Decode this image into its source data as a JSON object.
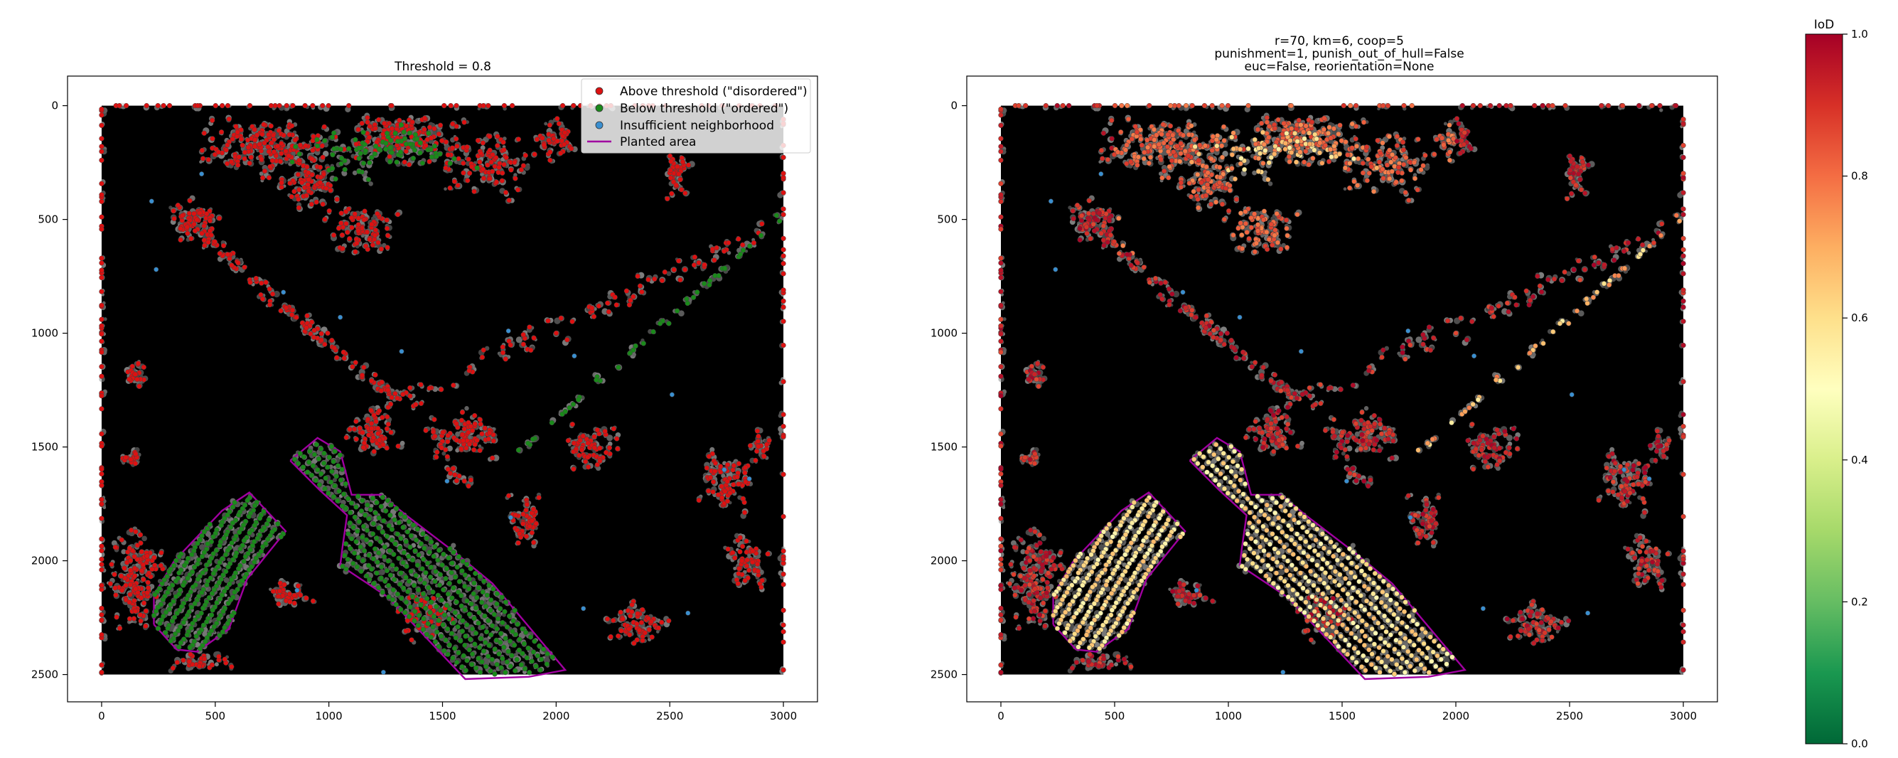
{
  "chart_data": [
    {
      "type": "scatter",
      "title": "Threshold = 0.8",
      "xlim": [
        -150,
        3150
      ],
      "ylim": [
        2620,
        -130
      ],
      "xticks": [
        0,
        500,
        1000,
        1500,
        2000,
        2500,
        3000
      ],
      "yticks": [
        0,
        500,
        1000,
        1500,
        2000,
        2500
      ],
      "grid": false,
      "legend_position": "top-right",
      "legend": [
        {
          "label": "Above threshold (\"disordered\")",
          "color": "#dd1111",
          "marker": "circle"
        },
        {
          "label": "Below threshold (\"ordered\")",
          "color": "#1a8a1a",
          "marker": "circle"
        },
        {
          "label": "Insufficient neighborhood",
          "color": "#3a8fd0",
          "marker": "circle"
        },
        {
          "label": "Planted area",
          "color": "#a000a0",
          "marker": "line"
        }
      ],
      "background_extent": {
        "x": [
          0,
          3000
        ],
        "y": [
          0,
          2500
        ]
      },
      "planted_area": [
        [
          [
            230,
            2280
          ],
          [
            330,
            2390
          ],
          [
            420,
            2400
          ],
          [
            560,
            2300
          ],
          [
            640,
            2080
          ],
          [
            810,
            1870
          ],
          [
            650,
            1700
          ],
          [
            530,
            1780
          ],
          [
            320,
            2000
          ],
          [
            230,
            2150
          ],
          [
            230,
            2280
          ]
        ],
        [
          [
            830,
            1560
          ],
          [
            950,
            1460
          ],
          [
            1050,
            1520
          ],
          [
            1100,
            1710
          ],
          [
            1230,
            1710
          ],
          [
            1340,
            1800
          ],
          [
            1550,
            1960
          ],
          [
            1720,
            2100
          ],
          [
            2040,
            2480
          ],
          [
            1880,
            2510
          ],
          [
            1600,
            2520
          ],
          [
            1260,
            2160
          ],
          [
            1050,
            2020
          ],
          [
            1060,
            1940
          ],
          [
            1080,
            1800
          ],
          [
            960,
            1690
          ],
          [
            830,
            1560
          ]
        ]
      ],
      "point_colors": {
        "disordered": "#dd1111",
        "ordered": "#1a8a1a",
        "insufficient": "#3a8fd0"
      }
    },
    {
      "type": "scatter",
      "title_lines": [
        "r=70, km=6, coop=5",
        "punishment=1, punish_out_of_hull=False",
        "euc=False, reorientation=None"
      ],
      "xlim": [
        -150,
        3150
      ],
      "ylim": [
        2620,
        -130
      ],
      "xticks": [
        0,
        500,
        1000,
        1500,
        2000,
        2500,
        3000
      ],
      "yticks": [
        0,
        500,
        1000,
        1500,
        2000,
        2500
      ],
      "grid": false,
      "background_extent": {
        "x": [
          0,
          3000
        ],
        "y": [
          0,
          2500
        ]
      },
      "planted_area": [
        [
          [
            230,
            2280
          ],
          [
            330,
            2390
          ],
          [
            420,
            2400
          ],
          [
            560,
            2300
          ],
          [
            640,
            2080
          ],
          [
            810,
            1870
          ],
          [
            650,
            1700
          ],
          [
            530,
            1780
          ],
          [
            320,
            2000
          ],
          [
            230,
            2150
          ],
          [
            230,
            2280
          ]
        ],
        [
          [
            830,
            1560
          ],
          [
            950,
            1460
          ],
          [
            1050,
            1520
          ],
          [
            1100,
            1710
          ],
          [
            1230,
            1710
          ],
          [
            1340,
            1800
          ],
          [
            1550,
            1960
          ],
          [
            1720,
            2100
          ],
          [
            2040,
            2480
          ],
          [
            1880,
            2510
          ],
          [
            1600,
            2520
          ],
          [
            1260,
            2160
          ],
          [
            1050,
            2020
          ],
          [
            1060,
            1940
          ],
          [
            1080,
            1800
          ],
          [
            960,
            1690
          ],
          [
            830,
            1560
          ]
        ]
      ],
      "colorbar": {
        "label": "IoD",
        "colormap": "RdYlGn_r",
        "range": [
          0.0,
          1.0
        ],
        "ticks": [
          "0.0",
          "0.2",
          "0.4",
          "0.6",
          "0.8",
          "1.0"
        ],
        "stops": [
          "#006837",
          "#1a9850",
          "#66bd63",
          "#a6d96a",
          "#d9ef8b",
          "#ffffbf",
          "#fee08b",
          "#fdae61",
          "#f46d43",
          "#d73027",
          "#a50026"
        ]
      }
    }
  ]
}
